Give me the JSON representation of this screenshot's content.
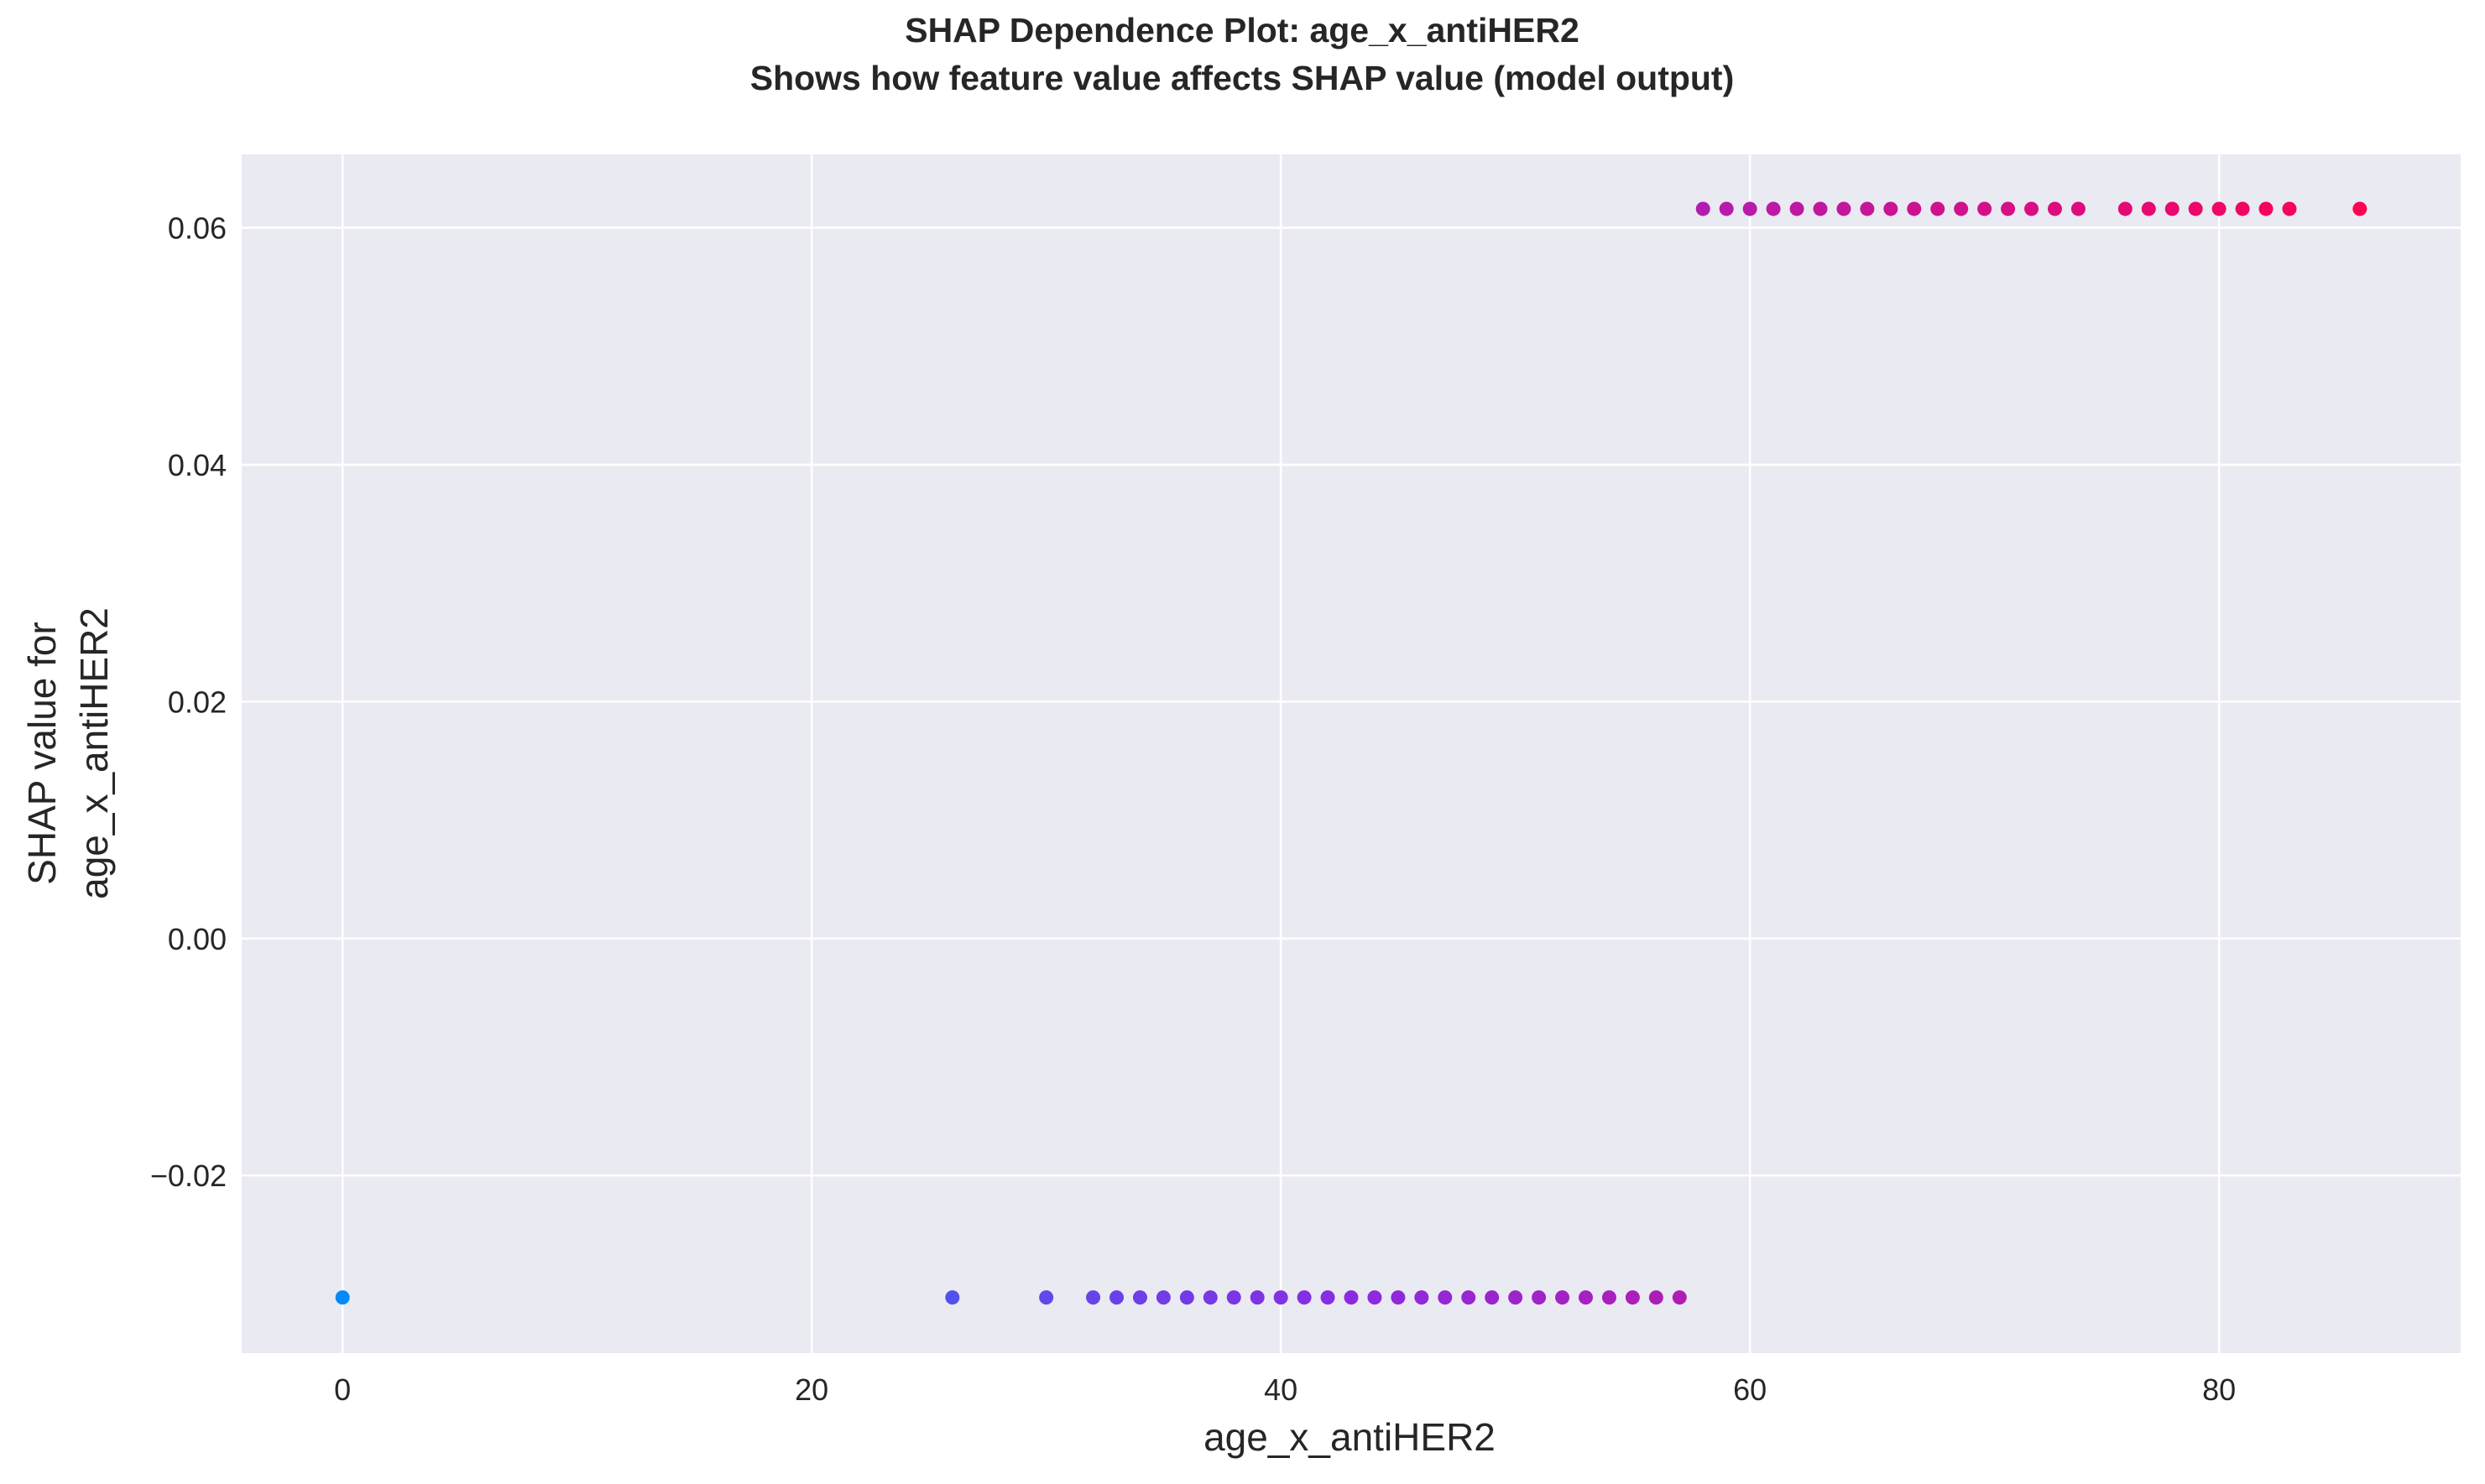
{
  "chart_data": {
    "type": "scatter",
    "title": "SHAP Dependence Plot: age_x_antiHER2",
    "subtitle": "Shows how feature value affects SHAP value (model output)",
    "xlabel": "age_x_antiHER2",
    "ylabel_line1": "SHAP value for",
    "ylabel_line2": "age_x_antiHER2",
    "xlim": [
      -4.3,
      90.3
    ],
    "ylim": [
      -0.035,
      0.0662
    ],
    "xticks": [
      0,
      20,
      40,
      60,
      80
    ],
    "xtick_labels": [
      "0",
      "20",
      "40",
      "60",
      "80"
    ],
    "yticks": [
      -0.02,
      0.0,
      0.02,
      0.04,
      0.06
    ],
    "ytick_labels": [
      "−0.02",
      "0.00",
      "0.02",
      "0.04",
      "0.06"
    ],
    "grid": true,
    "background_color": "#eaeaf2",
    "grid_color": "#ffffff",
    "color_map": [
      "#008afb",
      "#8a2be2",
      "#ff0052"
    ],
    "color_range": [
      0,
      86
    ],
    "x": [
      0,
      26,
      30,
      32,
      33,
      34,
      35,
      36,
      37,
      38,
      39,
      40,
      41,
      42,
      43,
      44,
      45,
      46,
      47,
      48,
      49,
      50,
      51,
      52,
      53,
      54,
      55,
      56,
      57,
      58,
      59,
      60,
      61,
      62,
      63,
      64,
      65,
      66,
      67,
      68,
      69,
      70,
      71,
      72,
      73,
      74,
      76,
      77,
      78,
      79,
      80,
      81,
      82,
      83,
      86
    ],
    "y": [
      -0.0303,
      -0.0303,
      -0.0303,
      -0.0303,
      -0.0303,
      -0.0303,
      -0.0303,
      -0.0303,
      -0.0303,
      -0.0303,
      -0.0303,
      -0.0303,
      -0.0303,
      -0.0303,
      -0.0303,
      -0.0303,
      -0.0303,
      -0.0303,
      -0.0303,
      -0.0303,
      -0.0303,
      -0.0303,
      -0.0303,
      -0.0303,
      -0.0303,
      -0.0303,
      -0.0303,
      -0.0303,
      -0.0303,
      0.0616,
      0.0616,
      0.0616,
      0.0616,
      0.0616,
      0.0616,
      0.0616,
      0.0616,
      0.0616,
      0.0616,
      0.0616,
      0.0616,
      0.0616,
      0.0616,
      0.0616,
      0.0616,
      0.0616,
      0.0616,
      0.0616,
      0.0616,
      0.0616,
      0.0616,
      0.0616,
      0.0616,
      0.0616,
      0.0616
    ]
  }
}
